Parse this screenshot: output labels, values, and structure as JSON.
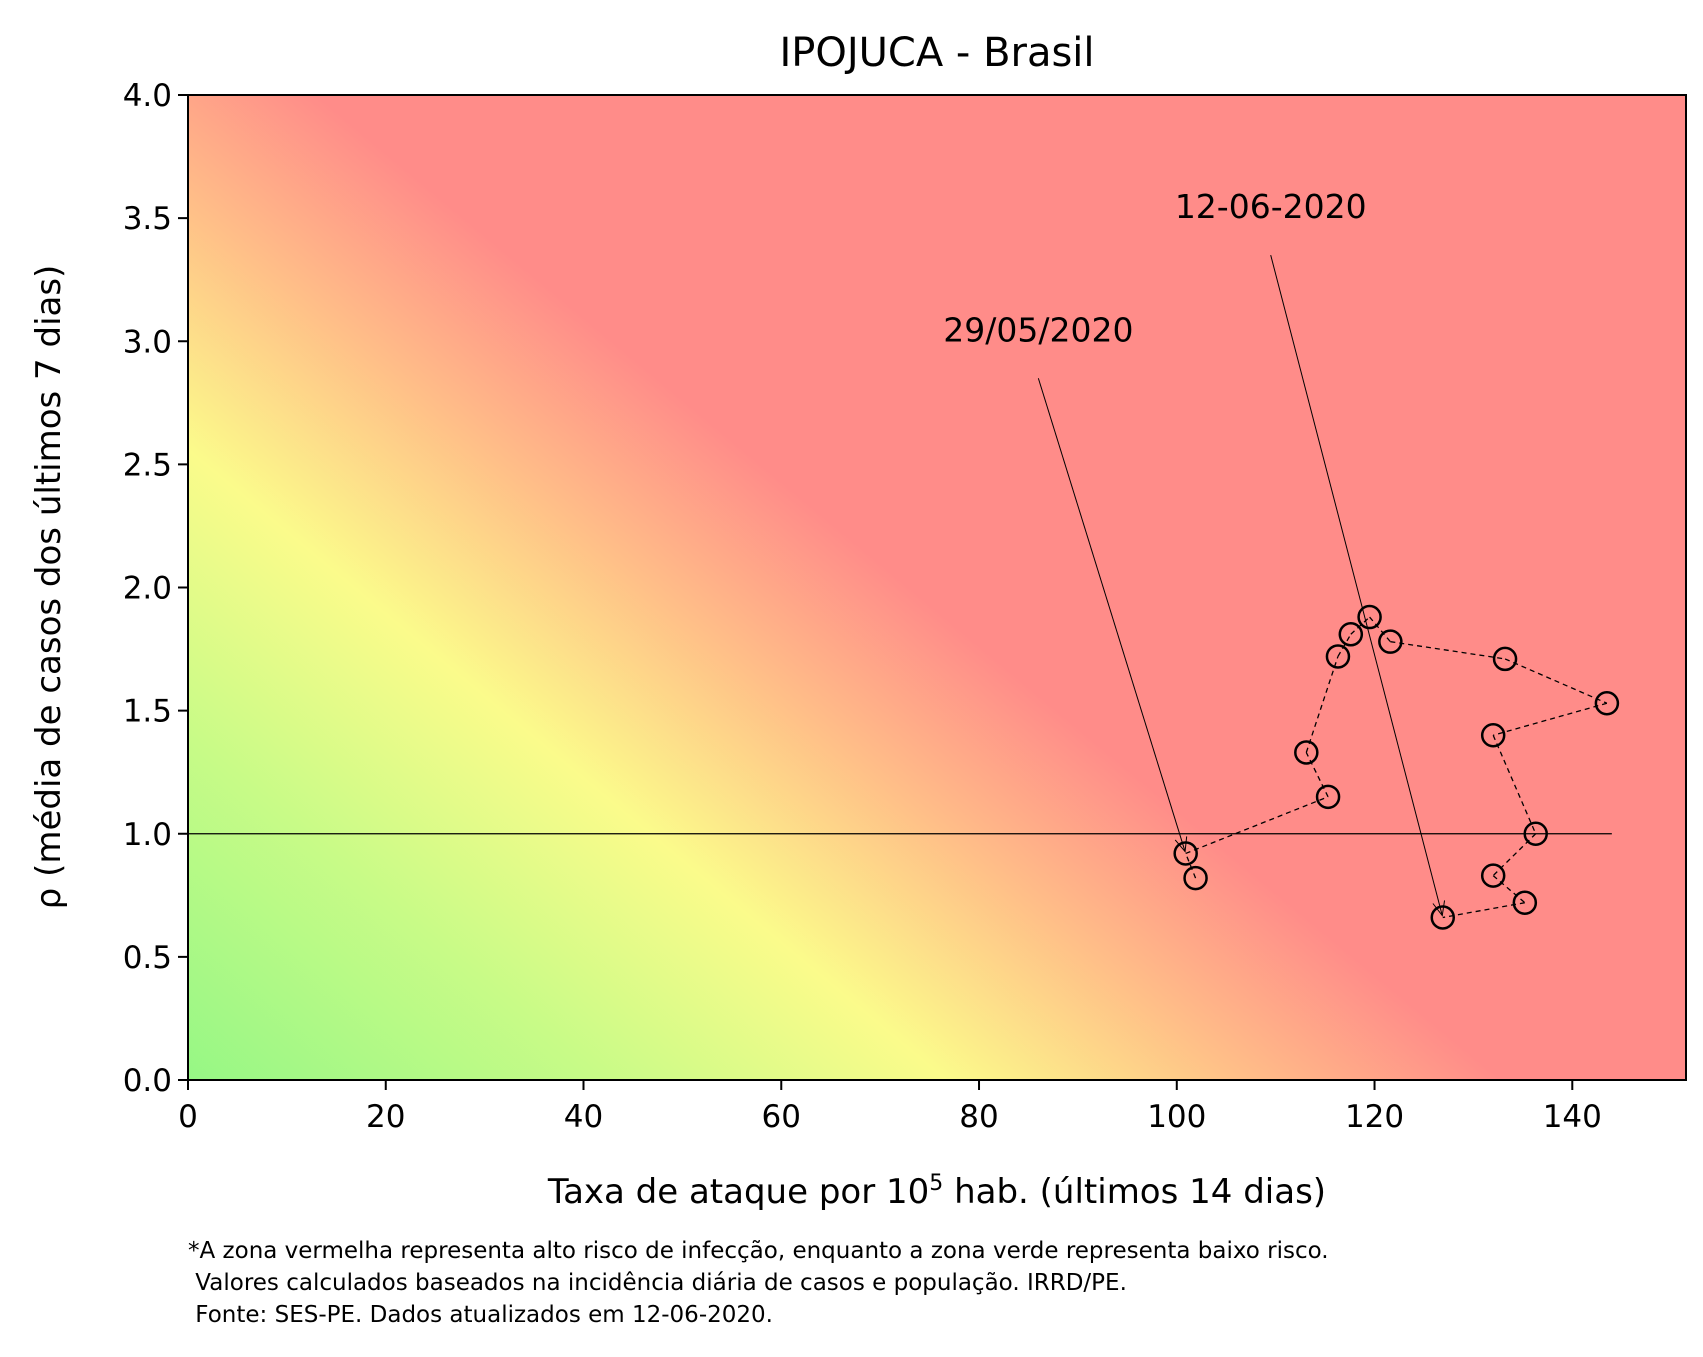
{
  "chart_data": {
    "type": "scatter",
    "title": "IPOJUCA - Brasil",
    "xlabel": "Taxa de ataque por 10",
    "xlabel_sup": "5",
    "xlabel_suffix": " hab. (últimos 14 dias)",
    "ylabel": "ρ (média de casos dos últimos 7 dias)",
    "xlim": [
      0,
      151.5
    ],
    "ylim": [
      0,
      4.0
    ],
    "xticks": [
      0,
      20,
      40,
      60,
      80,
      100,
      120,
      140
    ],
    "yticks": [
      0.0,
      0.5,
      1.0,
      1.5,
      2.0,
      2.5,
      3.0,
      3.5,
      4.0
    ],
    "x_tick_labels": [
      "0",
      "20",
      "40",
      "60",
      "80",
      "100",
      "120",
      "140"
    ],
    "y_tick_labels": [
      "0.0",
      "0.5",
      "1.0",
      "1.5",
      "2.0",
      "2.5",
      "3.0",
      "3.5",
      "4.0"
    ],
    "reference_line": {
      "y": 1.0,
      "x_range": [
        0,
        144
      ]
    },
    "background": "risk gradient (green = low risk, yellow, red = high risk)",
    "colors": {
      "green": "#95f785",
      "yellow": "#fbfb8b",
      "orange": "#ffc088",
      "red": "#ff8c89"
    },
    "series": [
      {
        "name": "IPOJUCA",
        "marker": "hollow circle",
        "line": "dashed",
        "x": [
          101.9,
          100.9,
          115.3,
          113.1,
          116.3,
          117.6,
          119.5,
          121.6,
          133.2,
          143.5,
          132.0,
          136.3,
          132.0,
          135.2,
          126.9
        ],
        "y": [
          0.82,
          0.92,
          1.15,
          1.33,
          1.72,
          1.81,
          1.88,
          1.78,
          1.71,
          1.53,
          1.4,
          1.0,
          0.83,
          0.72,
          0.66
        ]
      }
    ],
    "annotations": [
      {
        "text": "29/05/2020",
        "point": [
          100.9,
          0.92
        ],
        "text_pos": [
          86.0,
          3.0
        ]
      },
      {
        "text": "12-06-2020",
        "point": [
          126.9,
          0.66
        ],
        "text_pos": [
          109.5,
          3.5
        ]
      }
    ],
    "footnote": [
      "*A zona vermelha representa alto risco de infecção, enquanto a zona verde representa baixo risco.",
      " Valores calculados baseados na incidência diária de casos e população. IRRD/PE.",
      " Fonte: SES-PE. Dados atualizados em 12-06-2020."
    ]
  }
}
